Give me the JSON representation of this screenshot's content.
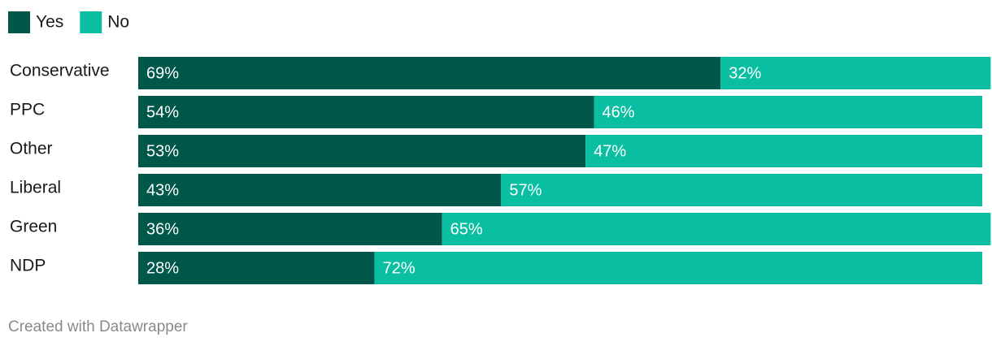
{
  "chart_data": {
    "type": "bar",
    "orientation": "horizontal",
    "stacked": true,
    "categories": [
      "Conservative",
      "PPC",
      "Other",
      "Liberal",
      "Green",
      "NDP"
    ],
    "series": [
      {
        "name": "Yes",
        "color": "#00574a",
        "values": [
          69,
          54,
          53,
          43,
          36,
          28
        ],
        "value_labels": [
          "69%",
          "54%",
          "53%",
          "43%",
          "36%",
          "28%"
        ]
      },
      {
        "name": "No",
        "color": "#0abfa1",
        "values": [
          32,
          46,
          47,
          57,
          65,
          72
        ],
        "value_labels": [
          "32%",
          "46%",
          "47%",
          "57%",
          "65%",
          "72%"
        ]
      }
    ],
    "xlim": [
      0,
      100
    ],
    "footer": "Created with Datawrapper"
  }
}
